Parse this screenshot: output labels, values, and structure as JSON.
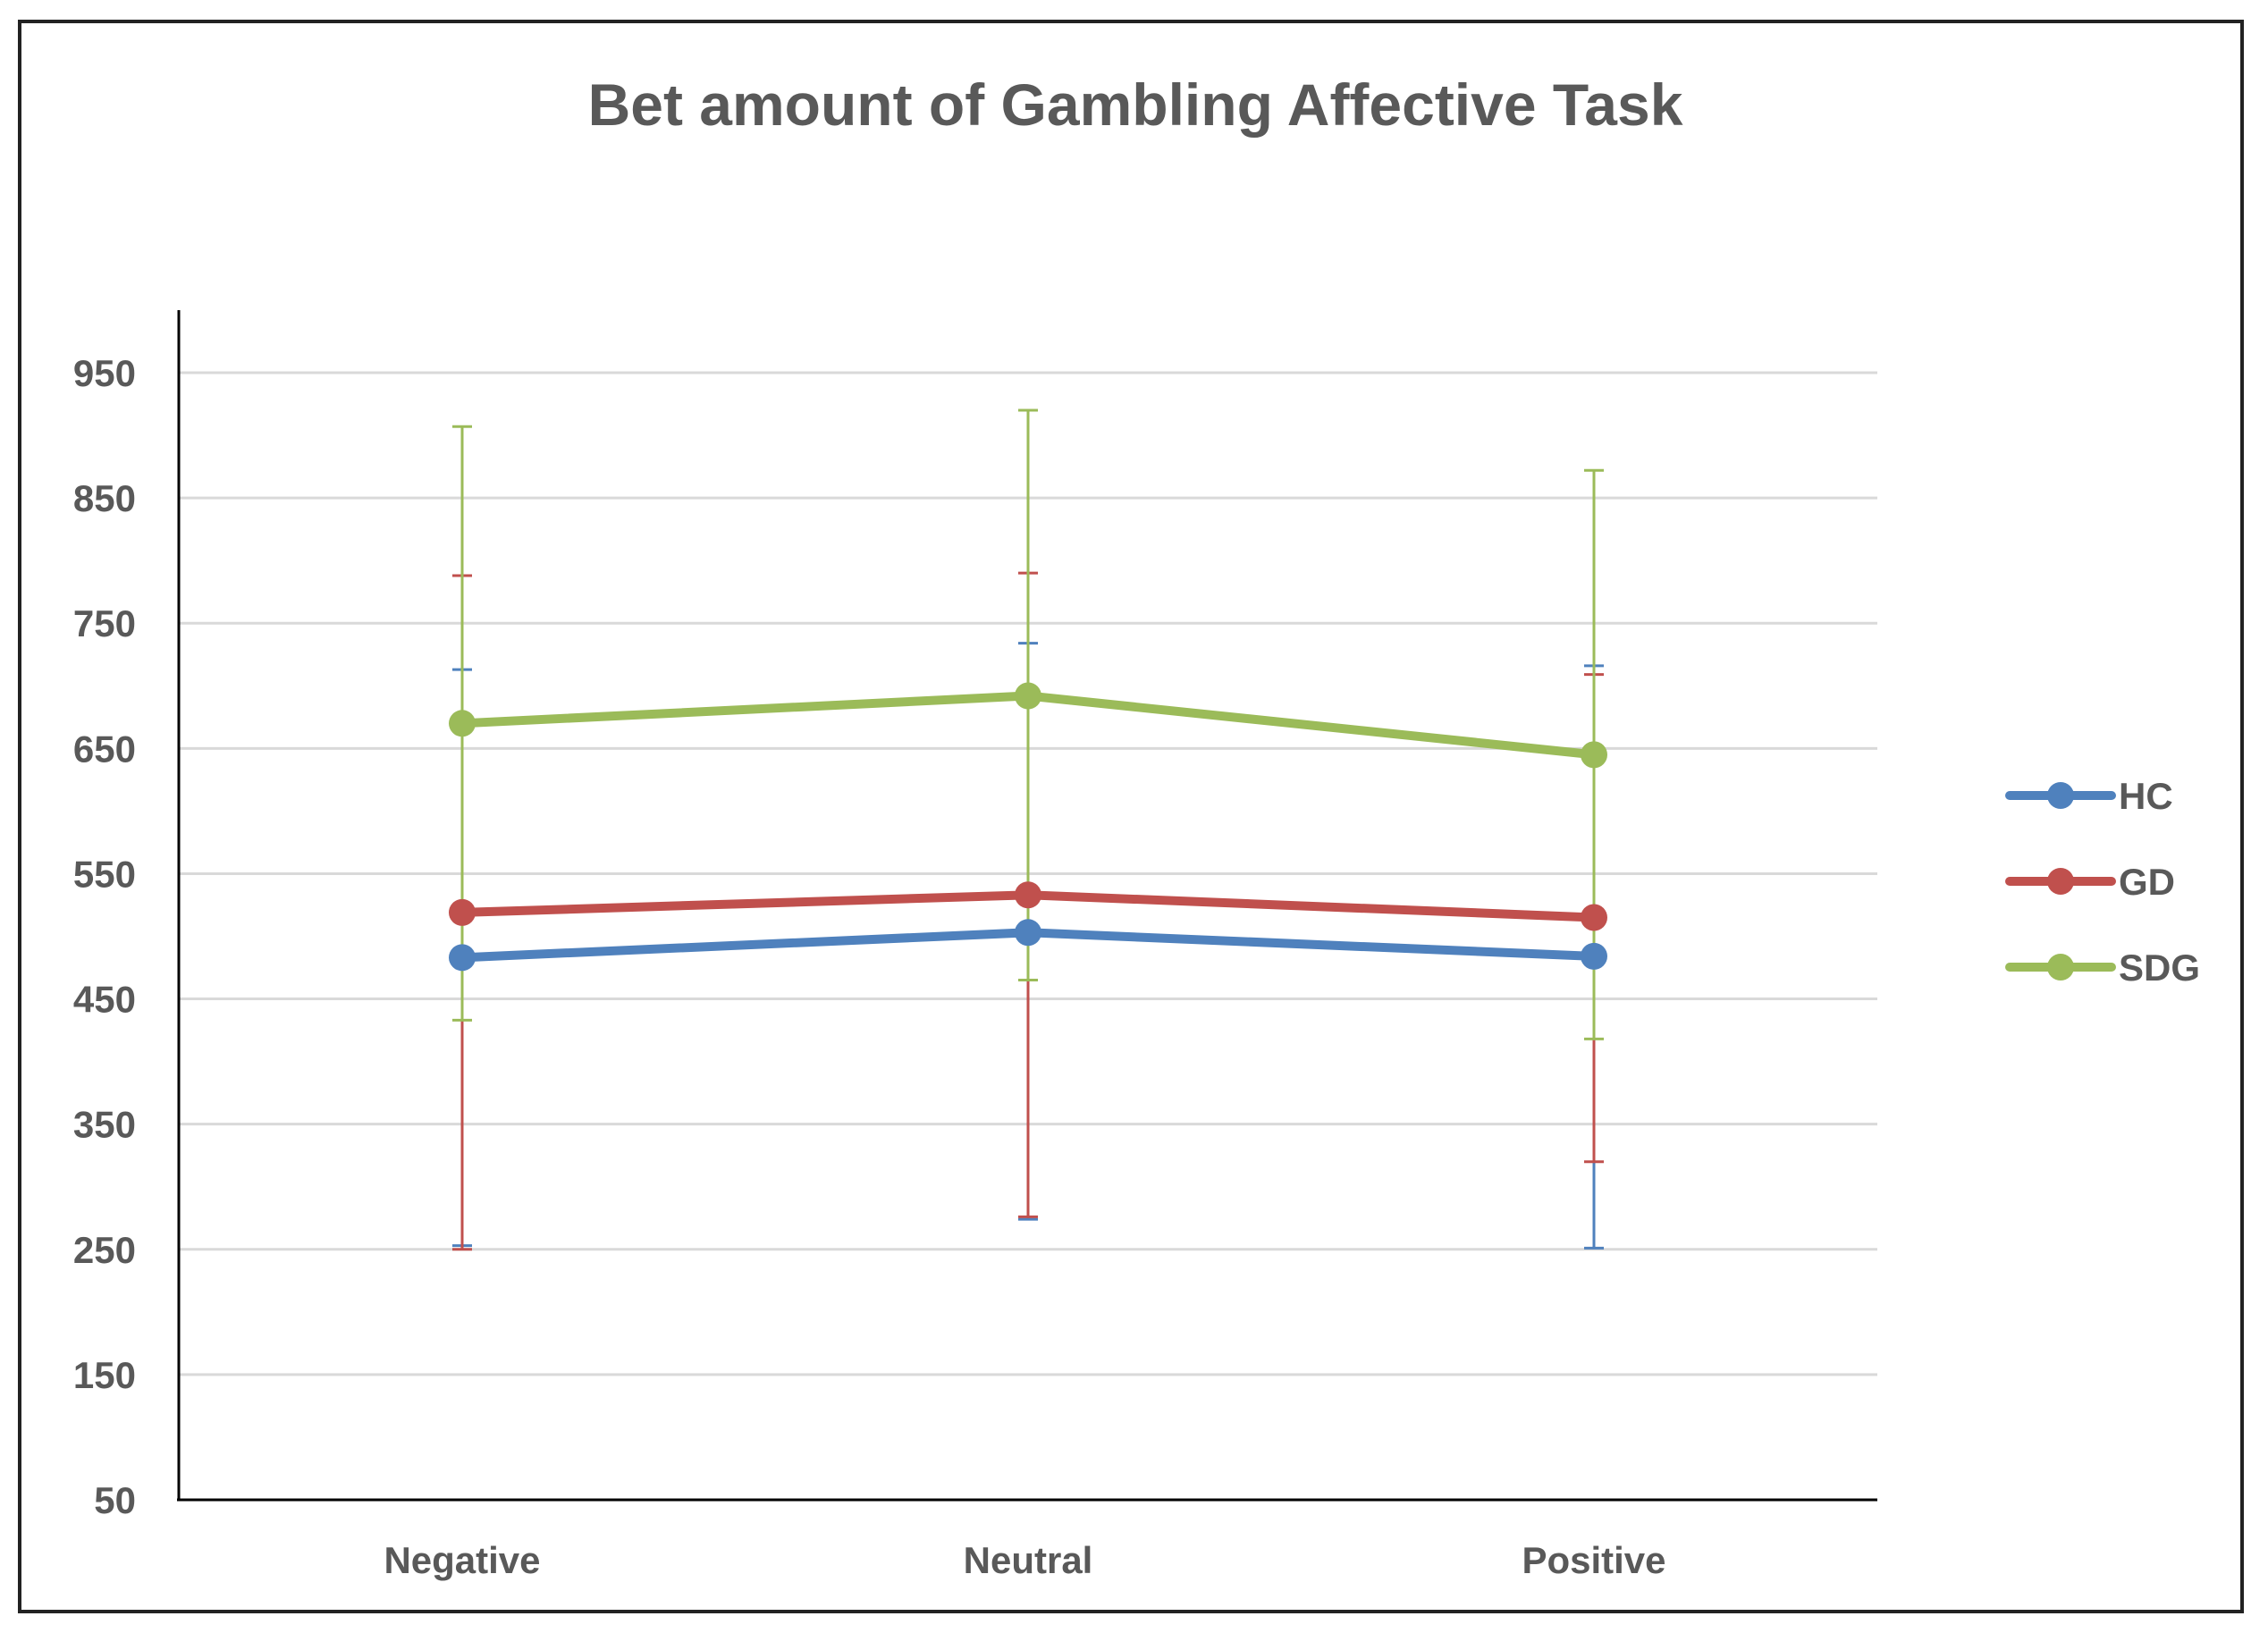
{
  "chart_data": {
    "type": "line",
    "title": "Bet amount of Gambling Affective Task",
    "xlabel": "",
    "ylabel": "",
    "categories": [
      "Negative",
      "Neutral",
      "Positive"
    ],
    "yticks": [
      50,
      150,
      250,
      350,
      450,
      550,
      650,
      750,
      850,
      950
    ],
    "ylim": [
      50,
      1000
    ],
    "grid": true,
    "legend_position": "right",
    "error_bars": true,
    "series": [
      {
        "name": "HC",
        "color": "#4F81BD",
        "values": [
          483,
          503,
          484
        ],
        "error_upper": [
          713,
          734,
          716
        ],
        "error_lower": [
          253,
          274,
          251
        ]
      },
      {
        "name": "GD",
        "color": "#C0504D",
        "values": [
          519,
          533,
          515
        ],
        "error_upper": [
          788,
          790,
          709
        ],
        "error_lower": [
          250,
          276,
          320
        ]
      },
      {
        "name": "SDG",
        "color": "#9BBB59",
        "values": [
          670,
          692,
          645
        ],
        "error_upper": [
          907,
          920,
          872
        ],
        "error_lower": [
          433,
          465,
          418
        ]
      }
    ]
  }
}
